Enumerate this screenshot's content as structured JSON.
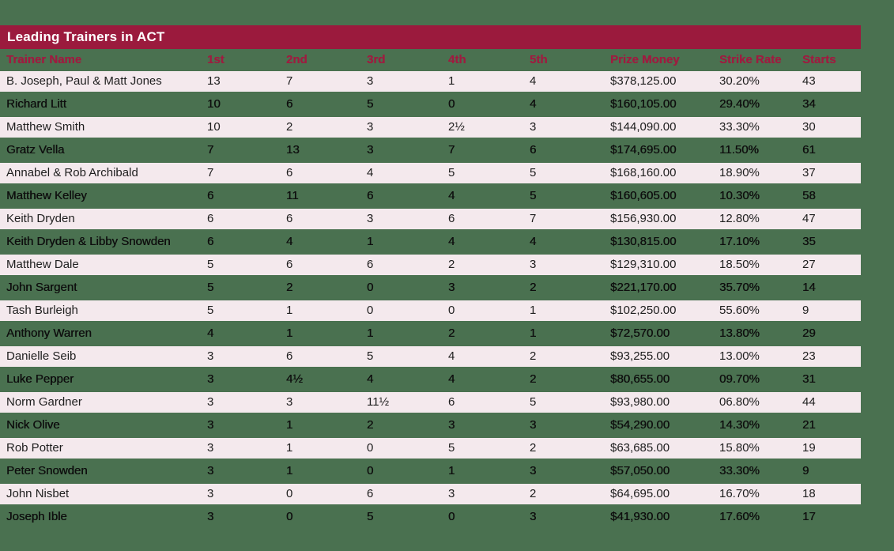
{
  "colors": {
    "background_green": "#4A7150",
    "title_bar_maroon": "#9B1A3D",
    "header_text_crimson": "#9E1C40",
    "row_pink": "#F4E9ED",
    "body_text": "#1E1E1E"
  },
  "table": {
    "title": "Leading Trainers in ACT",
    "columns": [
      {
        "key": "trainer-name",
        "label": "Trainer Name"
      },
      {
        "key": "first",
        "label": "1st"
      },
      {
        "key": "second",
        "label": "2nd"
      },
      {
        "key": "third",
        "label": "3rd"
      },
      {
        "key": "fourth",
        "label": "4th"
      },
      {
        "key": "fifth",
        "label": "5th"
      },
      {
        "key": "prize-money",
        "label": "Prize Money"
      },
      {
        "key": "strike-rate",
        "label": "Strike Rate"
      },
      {
        "key": "starts",
        "label": "Starts"
      }
    ],
    "rows": [
      [
        "B. Joseph, Paul & Matt Jones",
        "13",
        "7",
        "3",
        "1",
        "4",
        "$378,125.00",
        "30.20%",
        "43"
      ],
      [
        "Richard Litt",
        "10",
        "6",
        "5",
        "0",
        "4",
        "$160,105.00",
        "29.40%",
        "34"
      ],
      [
        "Matthew Smith",
        "10",
        "2",
        "3",
        "2½",
        "3",
        "$144,090.00",
        "33.30%",
        "30"
      ],
      [
        "Gratz Vella",
        "7",
        "13",
        "3",
        "7",
        "6",
        "$174,695.00",
        "11.50%",
        "61"
      ],
      [
        "Annabel & Rob Archibald",
        "7",
        "6",
        "4",
        "5",
        "5",
        "$168,160.00",
        "18.90%",
        "37"
      ],
      [
        "Matthew Kelley",
        "6",
        "11",
        "6",
        "4",
        "5",
        "$160,605.00",
        "10.30%",
        "58"
      ],
      [
        "Keith Dryden",
        "6",
        "6",
        "3",
        "6",
        "7",
        "$156,930.00",
        "12.80%",
        "47"
      ],
      [
        "Keith Dryden & Libby Snowden",
        "6",
        "4",
        "1",
        "4",
        "4",
        "$130,815.00",
        "17.10%",
        "35"
      ],
      [
        "Matthew Dale",
        "5",
        "6",
        "6",
        "2",
        "3",
        "$129,310.00",
        "18.50%",
        "27"
      ],
      [
        "John Sargent",
        "5",
        "2",
        "0",
        "3",
        "2",
        "$221,170.00",
        "35.70%",
        "14"
      ],
      [
        "Tash Burleigh",
        "5",
        "1",
        "0",
        "0",
        "1",
        "$102,250.00",
        "55.60%",
        "9"
      ],
      [
        "Anthony Warren",
        "4",
        "1",
        "1",
        "2",
        "1",
        "$72,570.00",
        "13.80%",
        "29"
      ],
      [
        "Danielle Seib",
        "3",
        "6",
        "5",
        "4",
        "2",
        "$93,255.00",
        "13.00%",
        "23"
      ],
      [
        "Luke Pepper",
        "3",
        "4½",
        "4",
        "4",
        "2",
        "$80,655.00",
        "09.70%",
        "31"
      ],
      [
        "Norm Gardner",
        "3",
        "3",
        "11½",
        "6",
        "5",
        "$93,980.00",
        "06.80%",
        "44"
      ],
      [
        "Nick Olive",
        "3",
        "1",
        "2",
        "3",
        "3",
        "$54,290.00",
        "14.30%",
        "21"
      ],
      [
        "Rob Potter",
        "3",
        "1",
        "0",
        "5",
        "2",
        "$63,685.00",
        "15.80%",
        "19"
      ],
      [
        "Peter Snowden",
        "3",
        "1",
        "0",
        "1",
        "3",
        "$57,050.00",
        "33.30%",
        "9"
      ],
      [
        "John Nisbet",
        "3",
        "0",
        "6",
        "3",
        "2",
        "$64,695.00",
        "16.70%",
        "18"
      ],
      [
        "Joseph Ible",
        "3",
        "0",
        "5",
        "0",
        "3",
        "$41,930.00",
        "17.60%",
        "17"
      ]
    ]
  }
}
